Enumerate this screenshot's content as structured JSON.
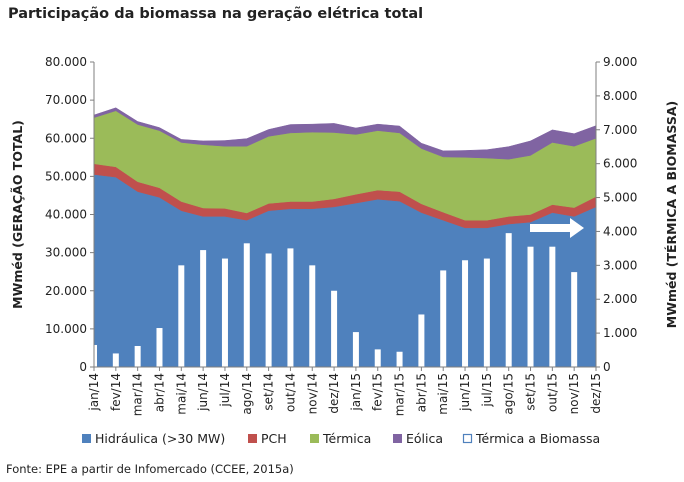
{
  "title": "Participação da biomassa na geração elétrica total",
  "source": "Fonte: EPE a partir de Infomercado (CCEE, 2015a)",
  "colors": {
    "hidraulica": "#4f81bd",
    "pch": "#c0504d",
    "termica": "#9bbb59",
    "eolica": "#8064a2",
    "biomassa_fill": "#ffffff",
    "biomassa_stroke": "#4f81bd",
    "arrow": "#ffffff",
    "axis": "#7f7f7f"
  },
  "chart_data": {
    "type": "area",
    "categories": [
      "jan/14",
      "fev/14",
      "mar/14",
      "abr/14",
      "mai/14",
      "jun/14",
      "jul/14",
      "ago/14",
      "set/14",
      "out/14",
      "nov/14",
      "dez/14",
      "jan/15",
      "fev/15",
      "mar/15",
      "abr/15",
      "mai/15",
      "jun/15",
      "jul/15",
      "ago/15",
      "set/15",
      "out/15",
      "nov/15",
      "dez/15"
    ],
    "y_left": {
      "label": "MWméd (GERAÇÃO TOTAL)",
      "range": [
        0,
        80000
      ],
      "ticks": [
        "0",
        "10.000",
        "20.000",
        "30.000",
        "40.000",
        "50.000",
        "60.000",
        "70.000",
        "80.000"
      ]
    },
    "y_right": {
      "label": "MWméd (TÉRMICA A BIOMASSA)",
      "range": [
        0,
        9000
      ],
      "ticks": [
        "0",
        "1.000",
        "2.000",
        "3.000",
        "4.000",
        "5.000",
        "6.000",
        "7.000",
        "8.000",
        "9.000"
      ]
    },
    "stacked_series": [
      {
        "name": "Hidráulica (>30 MW)",
        "values": [
          50500,
          49800,
          46000,
          44500,
          41000,
          39500,
          39500,
          38500,
          41000,
          41500,
          41500,
          42000,
          43000,
          44000,
          43500,
          40500,
          38500,
          36500,
          36500,
          37500,
          38000,
          40500,
          39500,
          42000
        ]
      },
      {
        "name": "PCH",
        "values": [
          2800,
          2700,
          2600,
          2500,
          2400,
          2200,
          2100,
          1900,
          1900,
          1900,
          1900,
          2100,
          2300,
          2400,
          2500,
          2300,
          2100,
          2000,
          2000,
          2000,
          2000,
          2100,
          2300,
          2700
        ]
      },
      {
        "name": "Térmica",
        "values": [
          12100,
          14700,
          15000,
          15000,
          15500,
          16600,
          16300,
          17500,
          17600,
          18000,
          18200,
          17400,
          15700,
          15600,
          15400,
          14500,
          14500,
          16500,
          16300,
          15000,
          15500,
          16300,
          16100,
          15300
        ]
      },
      {
        "name": "Eólica",
        "values": [
          700,
          800,
          800,
          800,
          800,
          1000,
          1500,
          2000,
          1800,
          2200,
          2100,
          2400,
          1700,
          1700,
          1800,
          1400,
          1600,
          1800,
          2200,
          3300,
          3800,
          3300,
          3300,
          3300
        ]
      }
    ],
    "bar_series": {
      "name": "Térmica a Biomassa",
      "axis": "right",
      "values": [
        650,
        400,
        620,
        1150,
        3000,
        3450,
        3200,
        3650,
        3350,
        3500,
        3000,
        2250,
        1030,
        520,
        450,
        1550,
        2850,
        3150,
        3200,
        3950,
        3550,
        3550,
        2800,
        0
      ]
    },
    "legend": [
      "Hidráulica (>30 MW)",
      "PCH",
      "Térmica",
      "Eólica",
      "Térmica a Biomassa"
    ],
    "legend_position": "bottom",
    "grid": false
  }
}
